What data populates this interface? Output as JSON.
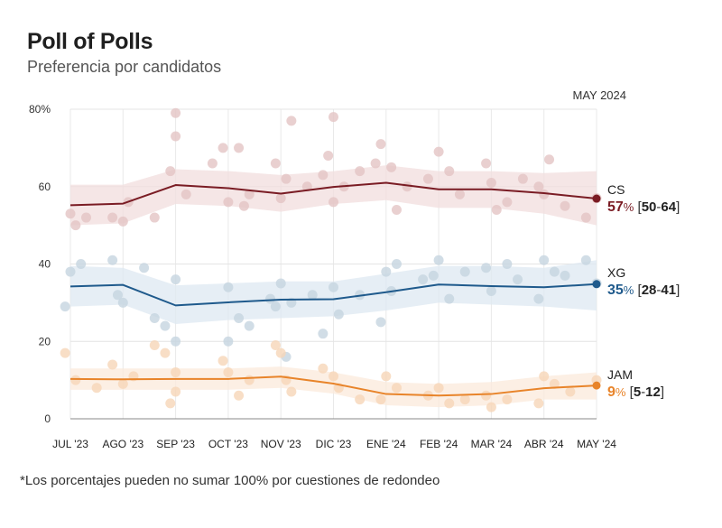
{
  "header": {
    "title": "Poll of Polls",
    "subtitle": "Preferencia por candidatos"
  },
  "footnote": "*Los porcentajes pueden no sumar 100% por cuestiones de redondeo",
  "chart_data": {
    "type": "line",
    "date_label": "MAY 2024",
    "categories": [
      "JUL '23",
      "AGO '23",
      "SEP '23",
      "OCT '23",
      "NOV '23",
      "DIC '23",
      "ENE '24",
      "FEB '24",
      "MAR '24",
      "ABR '24",
      "MAY '24"
    ],
    "ylim": [
      0,
      80
    ],
    "yticks": [
      0,
      20,
      40,
      60,
      80
    ],
    "ytick_labels": [
      "0",
      "20",
      "40",
      "60",
      "80%"
    ],
    "grid": true,
    "series": [
      {
        "name": "CS",
        "color": "#7a1c24",
        "band_color": "#f2dede",
        "dot_color": "#e3c4c4",
        "values": [
          55.2,
          55.6,
          60.4,
          59.6,
          58.2,
          59.9,
          61.0,
          59.3,
          59.3,
          58.3,
          56.9
        ],
        "upper": [
          60.5,
          60.5,
          64.5,
          64.0,
          63.0,
          64.0,
          65.5,
          64.0,
          64.0,
          63.5,
          64.0
        ],
        "lower": [
          50.0,
          50.5,
          55.5,
          55.0,
          53.5,
          55.5,
          56.5,
          54.5,
          54.5,
          53.0,
          50.0
        ],
        "polls": [
          [
            0.0,
            53
          ],
          [
            0.1,
            50
          ],
          [
            0.3,
            52
          ],
          [
            0.8,
            52
          ],
          [
            1.0,
            51
          ],
          [
            1.1,
            56
          ],
          [
            1.6,
            52
          ],
          [
            1.9,
            64
          ],
          [
            2.0,
            73
          ],
          [
            2.0,
            79
          ],
          [
            2.2,
            58
          ],
          [
            2.7,
            66
          ],
          [
            2.9,
            70
          ],
          [
            3.0,
            56
          ],
          [
            3.2,
            70
          ],
          [
            3.3,
            55
          ],
          [
            3.4,
            58
          ],
          [
            3.9,
            66
          ],
          [
            4.0,
            57
          ],
          [
            4.1,
            62
          ],
          [
            4.2,
            77
          ],
          [
            4.5,
            60
          ],
          [
            4.8,
            63
          ],
          [
            4.9,
            68
          ],
          [
            5.0,
            78
          ],
          [
            5.0,
            56
          ],
          [
            5.2,
            60
          ],
          [
            5.5,
            64
          ],
          [
            5.8,
            66
          ],
          [
            5.9,
            71
          ],
          [
            6.1,
            65
          ],
          [
            6.2,
            54
          ],
          [
            6.4,
            60
          ],
          [
            6.8,
            62
          ],
          [
            7.0,
            69
          ],
          [
            7.2,
            64
          ],
          [
            7.4,
            58
          ],
          [
            7.9,
            66
          ],
          [
            8.0,
            61
          ],
          [
            8.1,
            54
          ],
          [
            8.3,
            56
          ],
          [
            8.6,
            62
          ],
          [
            8.9,
            60
          ],
          [
            9.0,
            58
          ],
          [
            9.1,
            67
          ],
          [
            9.4,
            55
          ],
          [
            9.8,
            52
          ],
          [
            10.0,
            57
          ]
        ]
      },
      {
        "name": "XG",
        "color": "#1f5a8c",
        "band_color": "#dde8f2",
        "dot_color": "#c6d4e0",
        "values": [
          34.2,
          34.6,
          29.3,
          30.1,
          30.8,
          30.9,
          32.7,
          34.7,
          34.3,
          34.0,
          34.8
        ],
        "upper": [
          39.5,
          39.0,
          34.5,
          35.0,
          35.5,
          35.5,
          37.5,
          39.5,
          39.5,
          39.0,
          41.0
        ],
        "lower": [
          29.0,
          29.5,
          24.5,
          25.5,
          26.0,
          26.5,
          28.0,
          30.0,
          29.5,
          29.0,
          28.0
        ],
        "polls": [
          [
            -0.1,
            29
          ],
          [
            0.0,
            38
          ],
          [
            0.2,
            40
          ],
          [
            0.8,
            41
          ],
          [
            0.9,
            32
          ],
          [
            1.0,
            30
          ],
          [
            1.4,
            39
          ],
          [
            1.6,
            26
          ],
          [
            1.8,
            24
          ],
          [
            2.0,
            36
          ],
          [
            2.0,
            20
          ],
          [
            3.0,
            20
          ],
          [
            3.0,
            34
          ],
          [
            3.2,
            26
          ],
          [
            3.4,
            24
          ],
          [
            3.8,
            31
          ],
          [
            3.9,
            29
          ],
          [
            4.0,
            35
          ],
          [
            4.1,
            16
          ],
          [
            4.2,
            30
          ],
          [
            4.6,
            32
          ],
          [
            4.8,
            22
          ],
          [
            5.0,
            34
          ],
          [
            5.1,
            27
          ],
          [
            5.5,
            32
          ],
          [
            5.9,
            25
          ],
          [
            6.0,
            38
          ],
          [
            6.1,
            33
          ],
          [
            6.2,
            40
          ],
          [
            6.7,
            36
          ],
          [
            6.9,
            37
          ],
          [
            7.0,
            41
          ],
          [
            7.2,
            31
          ],
          [
            7.5,
            38
          ],
          [
            7.9,
            39
          ],
          [
            8.0,
            33
          ],
          [
            8.3,
            40
          ],
          [
            8.5,
            36
          ],
          [
            8.9,
            31
          ],
          [
            9.0,
            41
          ],
          [
            9.2,
            38
          ],
          [
            9.4,
            37
          ],
          [
            9.8,
            41
          ],
          [
            10.0,
            35
          ]
        ]
      },
      {
        "name": "JAM",
        "color": "#e8842a",
        "band_color": "#fbeadb",
        "dot_color": "#f6d6b8",
        "values": [
          10.3,
          10.2,
          10.3,
          10.3,
          10.9,
          9.1,
          6.4,
          6.0,
          6.4,
          7.9,
          8.6
        ],
        "upper": [
          13.0,
          13.0,
          13.0,
          13.0,
          13.5,
          12.0,
          9.5,
          9.0,
          9.5,
          11.0,
          12.0
        ],
        "lower": [
          7.5,
          7.5,
          7.5,
          7.5,
          8.0,
          6.5,
          3.5,
          3.0,
          3.5,
          5.0,
          5.0
        ],
        "polls": [
          [
            -0.1,
            17
          ],
          [
            0.1,
            10
          ],
          [
            0.5,
            8
          ],
          [
            0.8,
            14
          ],
          [
            1.0,
            9
          ],
          [
            1.2,
            11
          ],
          [
            1.6,
            19
          ],
          [
            1.8,
            17
          ],
          [
            1.9,
            4
          ],
          [
            2.0,
            7
          ],
          [
            2.0,
            12
          ],
          [
            2.9,
            15
          ],
          [
            3.0,
            12
          ],
          [
            3.2,
            6
          ],
          [
            3.4,
            10
          ],
          [
            3.9,
            19
          ],
          [
            4.0,
            17
          ],
          [
            4.1,
            10
          ],
          [
            4.2,
            7
          ],
          [
            4.8,
            13
          ],
          [
            5.0,
            11
          ],
          [
            5.1,
            8
          ],
          [
            5.5,
            5
          ],
          [
            5.9,
            5
          ],
          [
            6.0,
            11
          ],
          [
            6.2,
            8
          ],
          [
            6.8,
            6
          ],
          [
            7.0,
            8
          ],
          [
            7.2,
            4
          ],
          [
            7.5,
            5
          ],
          [
            7.9,
            6
          ],
          [
            8.0,
            3
          ],
          [
            8.3,
            5
          ],
          [
            8.9,
            4
          ],
          [
            9.0,
            11
          ],
          [
            9.2,
            9
          ],
          [
            9.5,
            7
          ],
          [
            10.0,
            10
          ]
        ]
      }
    ],
    "end_labels": [
      {
        "series": "CS",
        "name": "CS",
        "value": "57",
        "pct": "%",
        "range_open": " [",
        "range_low": "50",
        "range_dash": "-",
        "range_high": "64",
        "range_close": "]"
      },
      {
        "series": "XG",
        "name": "XG",
        "value": "35",
        "pct": "%",
        "range_open": " [",
        "range_low": "28",
        "range_dash": "-",
        "range_high": "41",
        "range_close": "]"
      },
      {
        "series": "JAM",
        "name": "JAM",
        "value": "9",
        "pct": "%",
        "range_open": " [",
        "range_low": "5",
        "range_dash": "-",
        "range_high": "12",
        "range_close": "]"
      }
    ]
  }
}
